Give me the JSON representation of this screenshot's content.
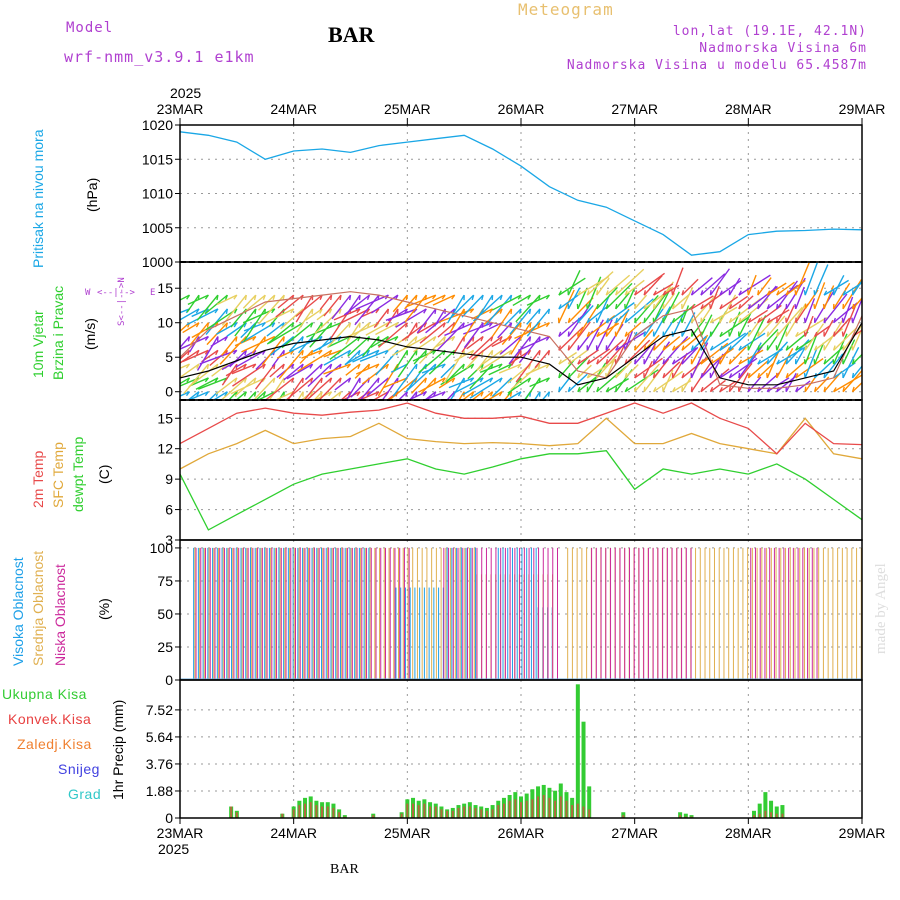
{
  "header": {
    "model_label": "Model",
    "model_name": "wrf-nmm_v3.9.1 e1km",
    "station": "BAR",
    "chart_title": "Meteogram",
    "location": "lon,lat (19.1E, 42.1N)",
    "altitude": "Nadmorska Visina 6m",
    "model_altitude": "Nadmorska Visina u modelu 65.4587m",
    "footer_station": "BAR",
    "watermark": "made by Angel"
  },
  "colors": {
    "pressure": "#1aa7e6",
    "wind_speed": "#000000",
    "temp2m": "#e84a4a",
    "sfc_temp": "#e0a83a",
    "dewpt": "#2fcf2f",
    "high_cloud": "#1ea0e8",
    "mid_cloud": "#e0b050",
    "low_cloud": "#cc2a9c",
    "rain": "#33cc33",
    "conv_rain": "#e84040",
    "freezing": "#f08030",
    "snow": "#4040e0",
    "hail": "#30c8c8",
    "dir_label": "#b040d0",
    "title_gold": "#e8c070"
  },
  "chart_data": [
    {
      "type": "line",
      "panel": "pressure",
      "ylabel_lines": [
        "Pritisak na nivou mora"
      ],
      "unit": "(hPa)",
      "ylim": [
        1000,
        1020
      ],
      "yticks": [
        "1020",
        "1015",
        "1010",
        "1005",
        "1000"
      ],
      "grid": true,
      "x_days": [
        0,
        0.25,
        0.5,
        0.75,
        1,
        1.25,
        1.5,
        1.75,
        2,
        2.25,
        2.5,
        2.75,
        3,
        3.25,
        3.5,
        3.75,
        4,
        4.25,
        4.5,
        4.75,
        5,
        5.25,
        5.5,
        5.75,
        6
      ],
      "series": [
        {
          "name": "Pritisak na nivou mora",
          "values": [
            1019,
            1018.5,
            1017.5,
            1015,
            1016.2,
            1016.5,
            1016,
            1017,
            1017.5,
            1018,
            1018.5,
            1016.5,
            1014,
            1011,
            1009,
            1008,
            1006,
            1004,
            1001,
            1001.5,
            1004,
            1004.5,
            1004.6,
            1004.8,
            1004.7
          ]
        }
      ]
    },
    {
      "type": "line",
      "panel": "wind",
      "ylabel_lines": [
        "10m Vjetar",
        "Brzina i Pravac"
      ],
      "unit": "(m/s)",
      "direction_legend": [
        "W",
        "<--|-->",
        "E",
        "S<--|-->N"
      ],
      "ylim": [
        0,
        15
      ],
      "yticks": [
        "15",
        "10",
        "5",
        "0"
      ],
      "grid": true,
      "x_days": [
        0,
        0.25,
        0.5,
        0.75,
        1,
        1.25,
        1.5,
        1.75,
        2,
        2.25,
        2.5,
        2.75,
        3,
        3.25,
        3.5,
        3.75,
        4,
        4.25,
        4.5,
        4.75,
        5,
        5.25,
        5.5,
        5.75,
        6
      ],
      "series": [
        {
          "name": "Brzina",
          "values": [
            2,
            3,
            4.5,
            6,
            7,
            7.5,
            8,
            7.5,
            6.5,
            6,
            5.5,
            5,
            5,
            4,
            1,
            2,
            5,
            8,
            9,
            2,
            1,
            1,
            2,
            3,
            10
          ]
        },
        {
          "name": "Pravac",
          "values": [
            5,
            9,
            11,
            13,
            13.5,
            14,
            14.5,
            14,
            13,
            12,
            11,
            10,
            9,
            8,
            3,
            2,
            8,
            11,
            12,
            1,
            0.5,
            0.5,
            1,
            2,
            11
          ]
        }
      ]
    },
    {
      "type": "line",
      "panel": "temperature",
      "ylabel_lines": [
        "2m Temp",
        "SFC Temp",
        "dewpt Temp"
      ],
      "unit": "(C)",
      "ylim": [
        3,
        16.5
      ],
      "yticks": [
        "15",
        "12",
        "9",
        "6",
        "3"
      ],
      "grid": true,
      "x_days": [
        0,
        0.25,
        0.5,
        0.75,
        1,
        1.25,
        1.5,
        1.75,
        2,
        2.25,
        2.5,
        2.75,
        3,
        3.25,
        3.5,
        3.75,
        4,
        4.25,
        4.5,
        4.75,
        5,
        5.25,
        5.5,
        5.75,
        6
      ],
      "series": [
        {
          "name": "2m Temp",
          "values": [
            12.5,
            14,
            15.5,
            16,
            15.5,
            15.3,
            15.6,
            15.8,
            16.5,
            15.5,
            15,
            15,
            15.2,
            14.5,
            14.5,
            15.5,
            16.5,
            15.5,
            16.5,
            15,
            14,
            11.5,
            14.5,
            12.5,
            12.4
          ]
        },
        {
          "name": "SFC Temp",
          "values": [
            10,
            11.5,
            12.5,
            13.8,
            12.5,
            13,
            13.2,
            14.5,
            13,
            12.7,
            12.5,
            12.6,
            12.5,
            12.3,
            12.5,
            15,
            12.5,
            12.5,
            13.5,
            12.5,
            12,
            11.5,
            15,
            11.5,
            11
          ]
        },
        {
          "name": "dewpt Temp",
          "values": [
            9.5,
            4,
            5.5,
            7,
            8.5,
            9.5,
            10,
            10.5,
            11,
            10,
            9.5,
            10.2,
            11,
            11.5,
            11.5,
            11.8,
            8,
            10,
            9.5,
            10,
            9.5,
            10.5,
            9,
            7,
            5
          ]
        }
      ]
    },
    {
      "type": "bar",
      "panel": "cloud",
      "ylabel_lines": [
        "Visoka Oblacnost",
        "Srednja Oblacnost",
        "Niska Oblacnost"
      ],
      "unit": "(%)",
      "ylim": [
        0,
        100
      ],
      "yticks": [
        "100",
        "75",
        "50",
        "25",
        "0"
      ],
      "grid": true,
      "series": [
        {
          "name": "Visoka Oblacnost",
          "segments": [
            [
              0.12,
              1.7,
              100
            ],
            [
              1.9,
              2.35,
              70
            ],
            [
              2.35,
              2.6,
              100
            ],
            [
              2.8,
              3.15,
              100
            ],
            [
              3.15,
              3.3,
              55
            ]
          ]
        },
        {
          "name": "Srednja Oblacnost",
          "segments": [
            [
              0.12,
              2.6,
              100
            ],
            [
              2.6,
              3.3,
              80
            ],
            [
              3.4,
              6,
              100
            ]
          ]
        },
        {
          "name": "Niska Oblacnost",
          "segments": [
            [
              0.12,
              2.0,
              100
            ],
            [
              2.3,
              3.3,
              100
            ],
            [
              3.6,
              4.5,
              100
            ],
            [
              5.0,
              5.6,
              100
            ]
          ]
        }
      ]
    },
    {
      "type": "bar",
      "panel": "precip",
      "ylabel_lines": [
        "1hr Precip (mm)"
      ],
      "legend": [
        "Ukupna Kisa",
        "Konvek.Kisa",
        "Zaledj.Kisa",
        "Snijeg",
        "Grad"
      ],
      "ylim": [
        0,
        9.4
      ],
      "yticks": [
        "7.52",
        "5.64",
        "3.76",
        "1.88",
        "0"
      ],
      "grid": true,
      "x_days": [
        0.45,
        0.5,
        0.9,
        1.0,
        1.05,
        1.1,
        1.15,
        1.2,
        1.25,
        1.3,
        1.35,
        1.4,
        1.45,
        1.7,
        1.95,
        2.0,
        2.05,
        2.1,
        2.15,
        2.2,
        2.25,
        2.3,
        2.35,
        2.4,
        2.45,
        2.5,
        2.55,
        2.6,
        2.65,
        2.7,
        2.75,
        2.8,
        2.85,
        2.9,
        2.95,
        3.0,
        3.05,
        3.1,
        3.15,
        3.2,
        3.25,
        3.3,
        3.35,
        3.4,
        3.45,
        3.5,
        3.55,
        3.6,
        3.9,
        4.4,
        4.45,
        4.5,
        5.05,
        5.1,
        5.15,
        5.2,
        5.25,
        5.3
      ],
      "series": [
        {
          "name": "Ukupna Kisa",
          "values": [
            0.8,
            0.5,
            0.3,
            0.8,
            1.2,
            1.4,
            1.5,
            1.2,
            1.1,
            1.1,
            1.0,
            0.6,
            0.2,
            0.3,
            0.4,
            1.3,
            1.4,
            1.2,
            1.3,
            1.1,
            1.0,
            0.8,
            0.6,
            0.7,
            0.9,
            1.0,
            1.1,
            0.9,
            0.8,
            0.7,
            0.9,
            1.2,
            1.4,
            1.6,
            1.8,
            1.5,
            1.7,
            2.0,
            2.2,
            2.3,
            2.1,
            1.9,
            2.4,
            1.8,
            1.4,
            9.3,
            6.7,
            2.2,
            0.4,
            0.4,
            0.3,
            0.2,
            0.5,
            1.0,
            1.8,
            1.2,
            0.8,
            0.9
          ]
        },
        {
          "name": "Konvek.Kisa",
          "values": [
            0.8,
            0.4,
            0.3,
            0.6,
            0.9,
            1.0,
            1.1,
            0.9,
            0.8,
            0.8,
            0.7,
            0.4,
            0.1,
            0.2,
            0.3,
            1.0,
            1.0,
            0.9,
            1.0,
            0.8,
            0.8,
            0.6,
            0.5,
            0.5,
            0.7,
            0.8,
            0.8,
            0.7,
            0.6,
            0.5,
            0.6,
            0.9,
            1.0,
            1.2,
            1.3,
            1.1,
            1.2,
            1.3,
            1.5,
            1.6,
            1.4,
            1.2,
            1.5,
            1.2,
            0.9,
            1.0,
            0.8,
            0.6,
            0.2,
            0.2,
            0.1,
            0.1,
            0.2,
            0.3,
            0.5,
            0.4,
            0.3,
            0.3
          ]
        }
      ]
    }
  ],
  "x_axis": {
    "year": "2025",
    "days": [
      "23MAR",
      "24MAR",
      "25MAR",
      "26MAR",
      "27MAR",
      "28MAR",
      "29MAR"
    ]
  }
}
